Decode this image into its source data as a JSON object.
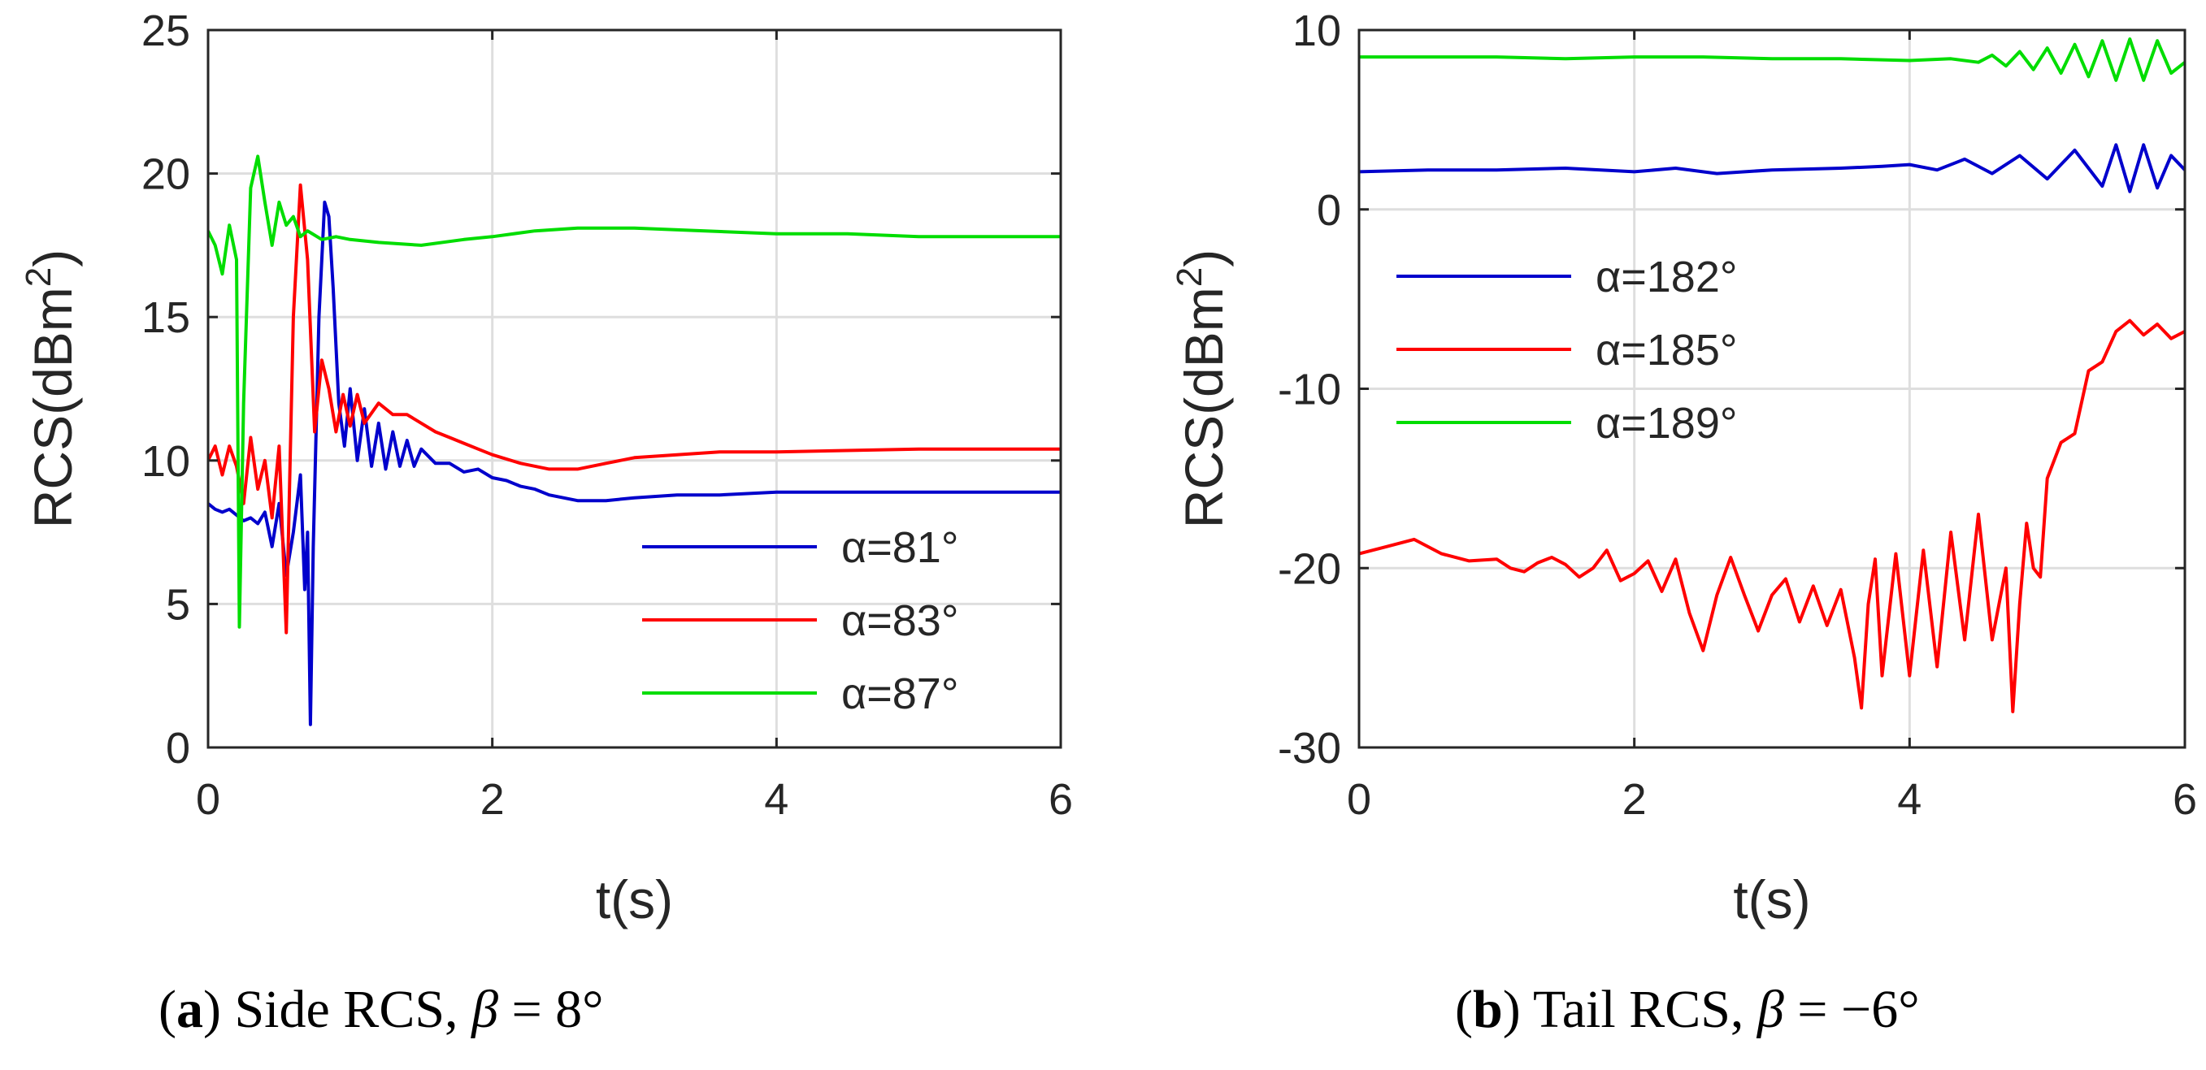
{
  "chart_data": [
    {
      "type": "line",
      "panel": "a",
      "caption": {
        "letter": "a",
        "text": " Side RCS, ",
        "beta_symbol": "β",
        "beta_value": " = 8°"
      },
      "xlabel": "t(s)",
      "ylabel": "RCS(dBm",
      "ylabel_sup": "2",
      "ylabel_close": ")",
      "xlim": [
        0,
        6
      ],
      "ylim": [
        0,
        25
      ],
      "xticks": [
        "0",
        "2",
        "4",
        "6"
      ],
      "yticks": [
        "0",
        "5",
        "10",
        "15",
        "20",
        "25"
      ],
      "grid": true,
      "legend_position": "bottom-right",
      "series": [
        {
          "name": "α=81°",
          "color": "#0000cc",
          "points": [
            [
              0,
              8.5
            ],
            [
              0.05,
              8.3
            ],
            [
              0.1,
              8.2
            ],
            [
              0.15,
              8.3
            ],
            [
              0.2,
              8.1
            ],
            [
              0.25,
              7.9
            ],
            [
              0.3,
              8.0
            ],
            [
              0.35,
              7.8
            ],
            [
              0.4,
              8.2
            ],
            [
              0.45,
              7.0
            ],
            [
              0.5,
              8.5
            ],
            [
              0.55,
              6.0
            ],
            [
              0.6,
              7.5
            ],
            [
              0.65,
              9.5
            ],
            [
              0.68,
              5.5
            ],
            [
              0.7,
              7.5
            ],
            [
              0.72,
              0.8
            ],
            [
              0.74,
              7.0
            ],
            [
              0.78,
              15.0
            ],
            [
              0.82,
              19.0
            ],
            [
              0.85,
              18.5
            ],
            [
              0.88,
              16.0
            ],
            [
              0.92,
              12.0
            ],
            [
              0.96,
              10.5
            ],
            [
              1.0,
              12.5
            ],
            [
              1.05,
              10.0
            ],
            [
              1.1,
              11.8
            ],
            [
              1.15,
              9.8
            ],
            [
              1.2,
              11.3
            ],
            [
              1.25,
              9.7
            ],
            [
              1.3,
              11.0
            ],
            [
              1.35,
              9.8
            ],
            [
              1.4,
              10.7
            ],
            [
              1.45,
              9.8
            ],
            [
              1.5,
              10.4
            ],
            [
              1.6,
              9.9
            ],
            [
              1.7,
              9.9
            ],
            [
              1.8,
              9.6
            ],
            [
              1.9,
              9.7
            ],
            [
              2.0,
              9.4
            ],
            [
              2.1,
              9.3
            ],
            [
              2.2,
              9.1
            ],
            [
              2.3,
              9.0
            ],
            [
              2.4,
              8.8
            ],
            [
              2.5,
              8.7
            ],
            [
              2.6,
              8.6
            ],
            [
              2.8,
              8.6
            ],
            [
              3.0,
              8.7
            ],
            [
              3.3,
              8.8
            ],
            [
              3.6,
              8.8
            ],
            [
              4.0,
              8.9
            ],
            [
              5.0,
              8.9
            ],
            [
              6.0,
              8.9
            ]
          ]
        },
        {
          "name": "α=83°",
          "color": "#ff0000",
          "points": [
            [
              0,
              10.0
            ],
            [
              0.05,
              10.5
            ],
            [
              0.1,
              9.5
            ],
            [
              0.15,
              10.5
            ],
            [
              0.2,
              9.8
            ],
            [
              0.25,
              8.5
            ],
            [
              0.3,
              10.8
            ],
            [
              0.35,
              9.0
            ],
            [
              0.4,
              10.0
            ],
            [
              0.45,
              8.0
            ],
            [
              0.5,
              10.5
            ],
            [
              0.55,
              4.0
            ],
            [
              0.6,
              15.0
            ],
            [
              0.65,
              19.6
            ],
            [
              0.7,
              17.0
            ],
            [
              0.75,
              11.0
            ],
            [
              0.8,
              13.5
            ],
            [
              0.85,
              12.5
            ],
            [
              0.9,
              11.0
            ],
            [
              0.95,
              12.3
            ],
            [
              1.0,
              11.2
            ],
            [
              1.05,
              12.3
            ],
            [
              1.1,
              11.3
            ],
            [
              1.2,
              12.0
            ],
            [
              1.3,
              11.6
            ],
            [
              1.4,
              11.6
            ],
            [
              1.5,
              11.3
            ],
            [
              1.6,
              11.0
            ],
            [
              1.7,
              10.8
            ],
            [
              1.8,
              10.6
            ],
            [
              1.9,
              10.4
            ],
            [
              2.0,
              10.2
            ],
            [
              2.2,
              9.9
            ],
            [
              2.4,
              9.7
            ],
            [
              2.6,
              9.7
            ],
            [
              2.8,
              9.9
            ],
            [
              3.0,
              10.1
            ],
            [
              3.3,
              10.2
            ],
            [
              3.6,
              10.3
            ],
            [
              4.0,
              10.3
            ],
            [
              5.0,
              10.4
            ],
            [
              6.0,
              10.4
            ]
          ]
        },
        {
          "name": "α=87°",
          "color": "#00dd00",
          "points": [
            [
              0,
              18.0
            ],
            [
              0.05,
              17.5
            ],
            [
              0.1,
              16.5
            ],
            [
              0.15,
              18.2
            ],
            [
              0.2,
              17.0
            ],
            [
              0.22,
              4.2
            ],
            [
              0.25,
              12.0
            ],
            [
              0.3,
              19.5
            ],
            [
              0.35,
              20.6
            ],
            [
              0.4,
              19.0
            ],
            [
              0.45,
              17.5
            ],
            [
              0.5,
              19.0
            ],
            [
              0.55,
              18.2
            ],
            [
              0.6,
              18.5
            ],
            [
              0.65,
              17.8
            ],
            [
              0.7,
              18.0
            ],
            [
              0.8,
              17.7
            ],
            [
              0.9,
              17.8
            ],
            [
              1.0,
              17.7
            ],
            [
              1.2,
              17.6
            ],
            [
              1.5,
              17.5
            ],
            [
              1.8,
              17.7
            ],
            [
              2.0,
              17.8
            ],
            [
              2.3,
              18.0
            ],
            [
              2.6,
              18.1
            ],
            [
              2.8,
              18.1
            ],
            [
              3.0,
              18.1
            ],
            [
              3.5,
              18.0
            ],
            [
              4.0,
              17.9
            ],
            [
              4.5,
              17.9
            ],
            [
              5.0,
              17.8
            ],
            [
              6.0,
              17.8
            ]
          ]
        }
      ]
    },
    {
      "type": "line",
      "panel": "b",
      "caption": {
        "letter": "b",
        "text": " Tail RCS, ",
        "beta_symbol": "β",
        "beta_value": " = −6°"
      },
      "xlabel": "t(s)",
      "ylabel": "RCS(dBm",
      "ylabel_sup": "2",
      "ylabel_close": ")",
      "xlim": [
        0,
        6
      ],
      "ylim": [
        -30,
        10
      ],
      "xticks": [
        "0",
        "2",
        "4",
        "6"
      ],
      "yticks": [
        "-30",
        "-20",
        "-10",
        "0",
        "10"
      ],
      "grid": true,
      "legend_position": "middle-left",
      "series": [
        {
          "name": "α=182°",
          "color": "#0000cc",
          "points": [
            [
              0,
              2.1
            ],
            [
              0.5,
              2.2
            ],
            [
              1.0,
              2.2
            ],
            [
              1.5,
              2.3
            ],
            [
              2.0,
              2.1
            ],
            [
              2.3,
              2.3
            ],
            [
              2.6,
              2.0
            ],
            [
              3.0,
              2.2
            ],
            [
              3.5,
              2.3
            ],
            [
              3.8,
              2.4
            ],
            [
              4.0,
              2.5
            ],
            [
              4.2,
              2.2
            ],
            [
              4.4,
              2.8
            ],
            [
              4.6,
              2.0
            ],
            [
              4.8,
              3.0
            ],
            [
              5.0,
              1.7
            ],
            [
              5.2,
              3.3
            ],
            [
              5.4,
              1.3
            ],
            [
              5.5,
              3.6
            ],
            [
              5.6,
              1.0
            ],
            [
              5.7,
              3.6
            ],
            [
              5.8,
              1.2
            ],
            [
              5.9,
              3.0
            ],
            [
              6.0,
              2.2
            ]
          ]
        },
        {
          "name": "α=185°",
          "color": "#ff0000",
          "points": [
            [
              0,
              -19.2
            ],
            [
              0.2,
              -18.8
            ],
            [
              0.4,
              -18.4
            ],
            [
              0.6,
              -19.2
            ],
            [
              0.8,
              -19.6
            ],
            [
              1.0,
              -19.5
            ],
            [
              1.1,
              -20.0
            ],
            [
              1.2,
              -20.2
            ],
            [
              1.3,
              -19.7
            ],
            [
              1.4,
              -19.4
            ],
            [
              1.5,
              -19.8
            ],
            [
              1.6,
              -20.5
            ],
            [
              1.7,
              -20.0
            ],
            [
              1.8,
              -19.0
            ],
            [
              1.9,
              -20.7
            ],
            [
              2.0,
              -20.3
            ],
            [
              2.1,
              -19.6
            ],
            [
              2.2,
              -21.3
            ],
            [
              2.3,
              -19.5
            ],
            [
              2.4,
              -22.5
            ],
            [
              2.5,
              -24.6
            ],
            [
              2.6,
              -21.5
            ],
            [
              2.7,
              -19.4
            ],
            [
              2.8,
              -21.5
            ],
            [
              2.9,
              -23.5
            ],
            [
              3.0,
              -21.5
            ],
            [
              3.1,
              -20.6
            ],
            [
              3.2,
              -23.0
            ],
            [
              3.3,
              -21.0
            ],
            [
              3.4,
              -23.2
            ],
            [
              3.5,
              -21.2
            ],
            [
              3.6,
              -25.0
            ],
            [
              3.65,
              -27.8
            ],
            [
              3.7,
              -22.0
            ],
            [
              3.75,
              -19.5
            ],
            [
              3.8,
              -26.0
            ],
            [
              3.9,
              -19.2
            ],
            [
              4.0,
              -26.0
            ],
            [
              4.1,
              -19.0
            ],
            [
              4.2,
              -25.5
            ],
            [
              4.3,
              -18.0
            ],
            [
              4.4,
              -24.0
            ],
            [
              4.5,
              -17.0
            ],
            [
              4.6,
              -24.0
            ],
            [
              4.7,
              -20.0
            ],
            [
              4.75,
              -28.0
            ],
            [
              4.8,
              -22.0
            ],
            [
              4.85,
              -17.5
            ],
            [
              4.9,
              -20.0
            ],
            [
              4.95,
              -20.5
            ],
            [
              5.0,
              -15.0
            ],
            [
              5.1,
              -13.0
            ],
            [
              5.2,
              -12.5
            ],
            [
              5.3,
              -9.0
            ],
            [
              5.4,
              -8.5
            ],
            [
              5.5,
              -6.8
            ],
            [
              5.6,
              -6.2
            ],
            [
              5.7,
              -7.0
            ],
            [
              5.8,
              -6.4
            ],
            [
              5.9,
              -7.2
            ],
            [
              6.0,
              -6.8
            ]
          ]
        },
        {
          "name": "α=189°",
          "color": "#00dd00",
          "points": [
            [
              0,
              8.5
            ],
            [
              0.5,
              8.5
            ],
            [
              1.0,
              8.5
            ],
            [
              1.5,
              8.4
            ],
            [
              2.0,
              8.5
            ],
            [
              2.5,
              8.5
            ],
            [
              3.0,
              8.4
            ],
            [
              3.5,
              8.4
            ],
            [
              4.0,
              8.3
            ],
            [
              4.3,
              8.4
            ],
            [
              4.5,
              8.2
            ],
            [
              4.6,
              8.6
            ],
            [
              4.7,
              8.0
            ],
            [
              4.8,
              8.8
            ],
            [
              4.9,
              7.8
            ],
            [
              5.0,
              9.0
            ],
            [
              5.1,
              7.6
            ],
            [
              5.2,
              9.2
            ],
            [
              5.3,
              7.4
            ],
            [
              5.4,
              9.4
            ],
            [
              5.5,
              7.2
            ],
            [
              5.6,
              9.5
            ],
            [
              5.7,
              7.2
            ],
            [
              5.8,
              9.4
            ],
            [
              5.9,
              7.6
            ],
            [
              6.0,
              8.2
            ]
          ]
        }
      ]
    }
  ]
}
